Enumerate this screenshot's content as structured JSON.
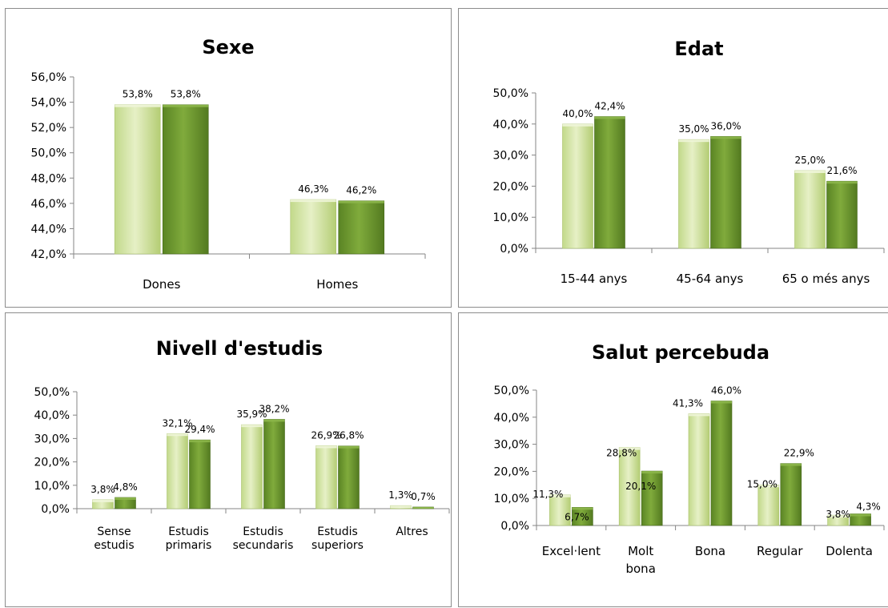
{
  "chart_data": [
    {
      "type": "bar",
      "title": "Sexe",
      "categories": [
        "Dones",
        "Homes"
      ],
      "series": [
        {
          "values": [
            53.8,
            46.3
          ],
          "labels": [
            "53,8%",
            "46,3%"
          ]
        },
        {
          "values": [
            53.8,
            46.2
          ],
          "labels": [
            "53,8%",
            "46,2%"
          ]
        }
      ],
      "ylim": [
        42,
        56
      ],
      "yticks": [
        "42,0%",
        "44,0%",
        "46,0%",
        "48,0%",
        "50,0%",
        "52,0%",
        "54,0%",
        "56,0%"
      ]
    },
    {
      "type": "bar",
      "title": "Edat",
      "categories": [
        "15-44 anys",
        "45-64 anys",
        "65 o més anys"
      ],
      "series": [
        {
          "values": [
            40.0,
            35.0,
            25.0
          ],
          "labels": [
            "40,0%",
            "35,0%",
            "25,0%"
          ]
        },
        {
          "values": [
            42.4,
            36.0,
            21.6
          ],
          "labels": [
            "42,4%",
            "36,0%",
            "21,6%"
          ]
        }
      ],
      "ylim": [
        0,
        50
      ],
      "yticks": [
        "0,0%",
        "10,0%",
        "20,0%",
        "30,0%",
        "40,0%",
        "50,0%"
      ]
    },
    {
      "type": "bar",
      "title": "Nivell d'estudis",
      "categories": [
        "Sense estudis",
        "Estudis primaris",
        "Estudis secundaris",
        "Estudis superiors",
        "Altres"
      ],
      "series": [
        {
          "values": [
            3.8,
            32.1,
            35.9,
            26.9,
            1.3
          ],
          "labels": [
            "3,8%",
            "32,1%",
            "35,9%",
            "26,9%",
            "1,3%"
          ]
        },
        {
          "values": [
            4.8,
            29.4,
            38.2,
            26.8,
            0.7
          ],
          "labels": [
            "4,8%",
            "29,4%",
            "38,2%",
            "26,8%",
            "0,7%"
          ]
        }
      ],
      "ylim": [
        0,
        50
      ],
      "yticks": [
        "0,0%",
        "10,0%",
        "20,0%",
        "30,0%",
        "40,0%",
        "50,0%"
      ]
    },
    {
      "type": "bar",
      "title": "Salut percebuda",
      "categories": [
        "Excel·lent",
        "Molt bona",
        "Bona",
        "Regular",
        "Dolenta"
      ],
      "series": [
        {
          "values": [
            11.3,
            28.8,
            41.3,
            15.0,
            3.8
          ],
          "labels": [
            "11,3%",
            "28,8%",
            "41,3%",
            "15,0%",
            "3,8%"
          ]
        },
        {
          "values": [
            6.7,
            20.1,
            46.0,
            22.9,
            4.3
          ],
          "labels": [
            "6,7%",
            "20,1%",
            "46,0%",
            "22,9%",
            "4,3%"
          ]
        }
      ],
      "ylim": [
        0,
        50
      ],
      "yticks": [
        "0,0%",
        "10,0%",
        "20,0%",
        "30,0%",
        "40,0%",
        "50,0%"
      ]
    }
  ],
  "colors": {
    "series1": "#d4e5a5",
    "series2": "#6e9a2e",
    "axis": "#868686",
    "border": "#8c8c8c"
  }
}
